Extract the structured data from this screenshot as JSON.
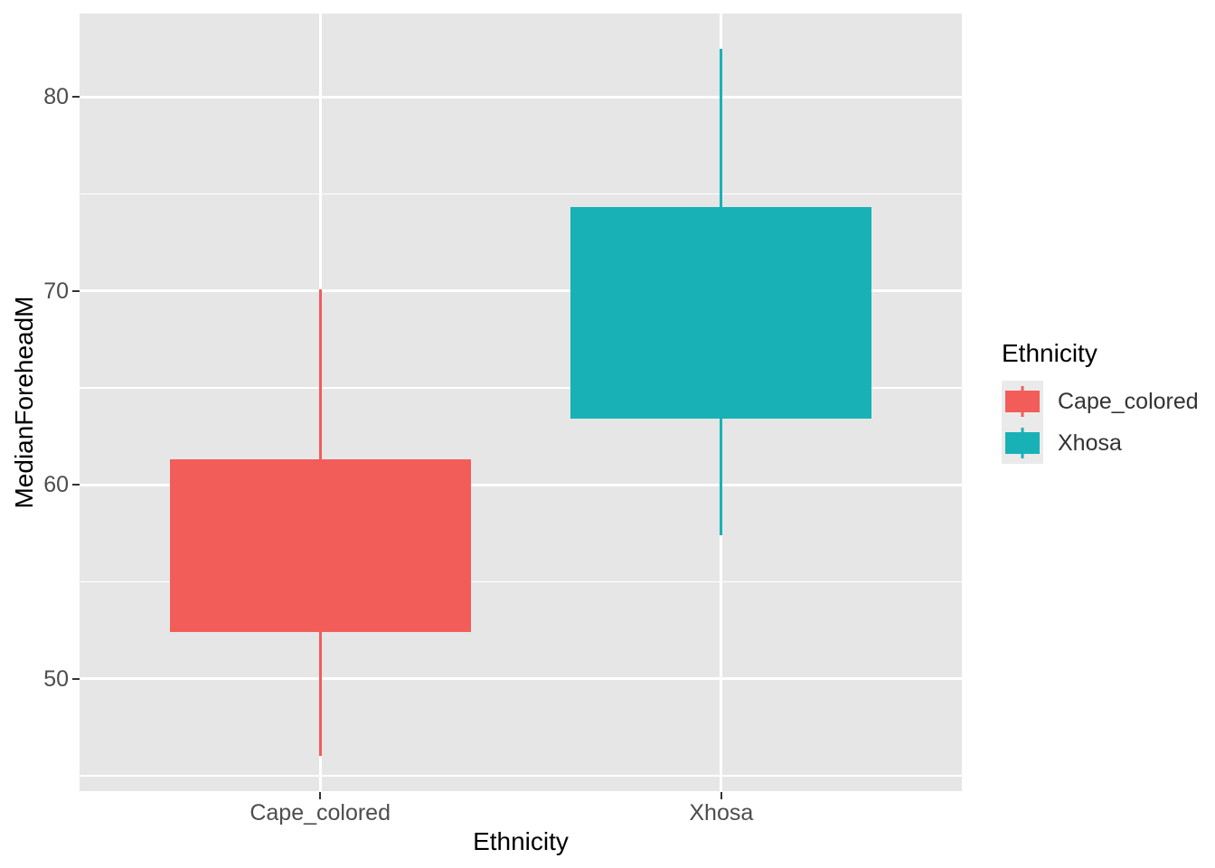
{
  "figure": {
    "background": "#FFFFFF"
  },
  "panel": {
    "background": "#E6E6E6",
    "grid_color": "#FFFFFF"
  },
  "text_colors": {
    "axis_tick_labels": "#4D4D4D",
    "axis_titles": "#000000",
    "tick_marks": "#333333"
  },
  "chart_data": {
    "type": "boxplot",
    "title": "",
    "xlabel": "Ethnicity",
    "ylabel": "MedianForeheadM",
    "categories": [
      "Cape_colored",
      "Xhosa"
    ],
    "series": [
      {
        "name": "Cape_colored",
        "color": "#F25D5A",
        "whisker_low": 46.0,
        "q1": 52.4,
        "median": null,
        "q3": 61.3,
        "whisker_high": 70.1
      },
      {
        "name": "Xhosa",
        "color": "#18B2B6",
        "whisker_low": 57.4,
        "q1": 63.4,
        "median": null,
        "q3": 74.3,
        "whisker_high": 82.5
      }
    ],
    "median_note": "median lines not visible (same color as box fill)",
    "y_ticks": [
      80,
      70,
      60,
      50
    ],
    "y_minor_ticks": [
      75,
      65,
      55,
      45
    ],
    "ylim": [
      44.2,
      84.3
    ],
    "grid": "on",
    "legend": {
      "title": "Ethnicity",
      "position": "right",
      "entries": [
        {
          "label": "Cape_colored",
          "color": "#F25D5A"
        },
        {
          "label": "Xhosa",
          "color": "#18B2B6"
        }
      ]
    }
  }
}
